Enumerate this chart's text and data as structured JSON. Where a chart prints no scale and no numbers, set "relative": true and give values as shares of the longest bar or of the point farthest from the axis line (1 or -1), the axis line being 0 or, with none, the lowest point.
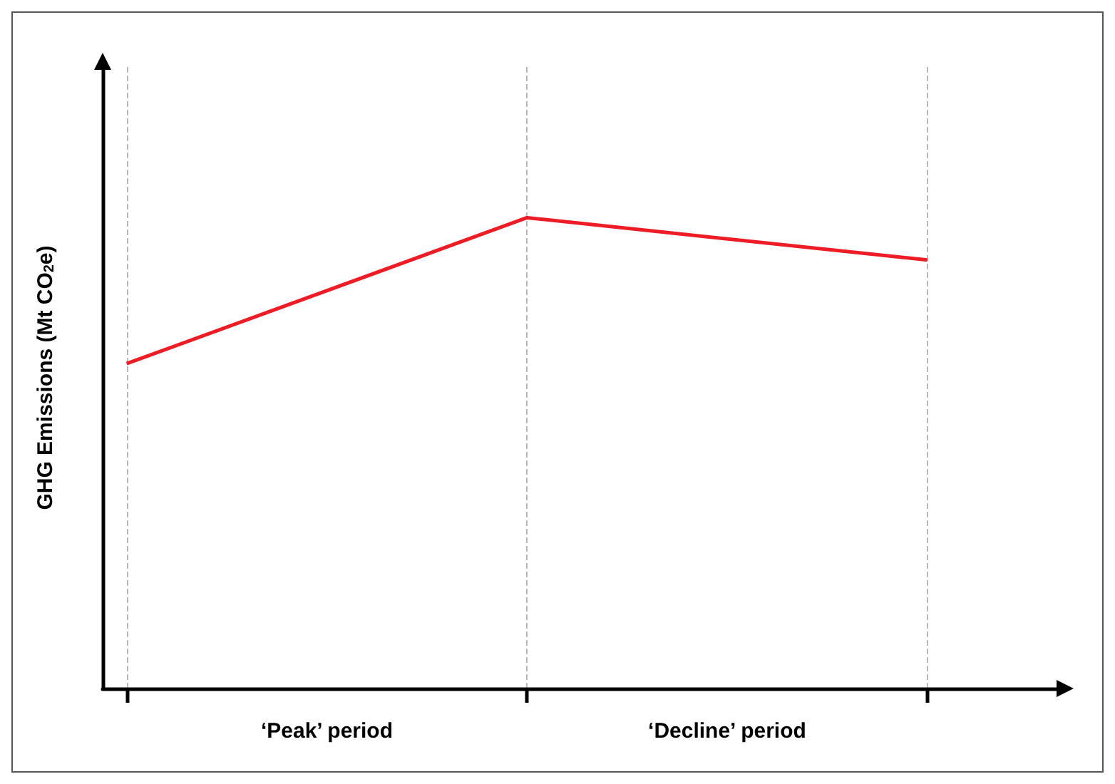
{
  "chart_data": {
    "type": "line",
    "ylabel": "GHG Emissions (Mt CO$_{2}$e)",
    "categories": [
      null,
      null,
      null
    ],
    "relative": true,
    "series": [
      {
        "color": "#ee1c25",
        "values": [
          0.69,
          1,
          0.91
        ]
      }
    ],
    "grid": "x",
    "marker": "none",
    "line_style": "solid",
    "annotations": [
      "‘Peak’ period",
      "‘Decline’ period"
    ]
  }
}
